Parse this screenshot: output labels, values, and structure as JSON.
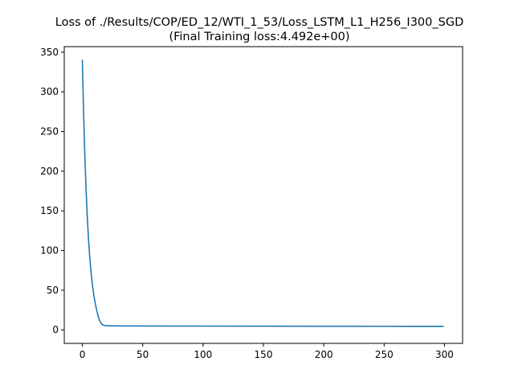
{
  "chart_data": {
    "type": "line",
    "title": "Loss of ./Results/COP/ED_12/WTI_1_53/Loss_LSTM_L1_H256_I300_SGD",
    "subtitle": "(Final Training loss:4.492e+00)",
    "xlabel": "",
    "ylabel": "",
    "xlim": [
      -15,
      315
    ],
    "ylim": [
      -17,
      357
    ],
    "xticks": [
      0,
      50,
      100,
      150,
      200,
      250,
      300
    ],
    "yticks": [
      0,
      50,
      100,
      150,
      200,
      250,
      300,
      350
    ],
    "grid": false,
    "legend": "none",
    "series": [
      {
        "color": "#1f77b4",
        "x": [
          0,
          1,
          2,
          3,
          4,
          5,
          6,
          7,
          8,
          9,
          10,
          11,
          12,
          13,
          14,
          15,
          16,
          17,
          18,
          20,
          22,
          25,
          30,
          40,
          60,
          100,
          150,
          200,
          250,
          299
        ],
        "y": [
          340,
          275,
          222,
          180,
          145,
          117,
          94,
          76,
          61,
          49,
          39,
          31,
          24,
          18,
          13,
          9.5,
          7.5,
          6.2,
          5.6,
          5.3,
          5.2,
          5.1,
          5.0,
          4.95,
          4.9,
          4.8,
          4.7,
          4.6,
          4.55,
          4.492
        ]
      }
    ]
  }
}
